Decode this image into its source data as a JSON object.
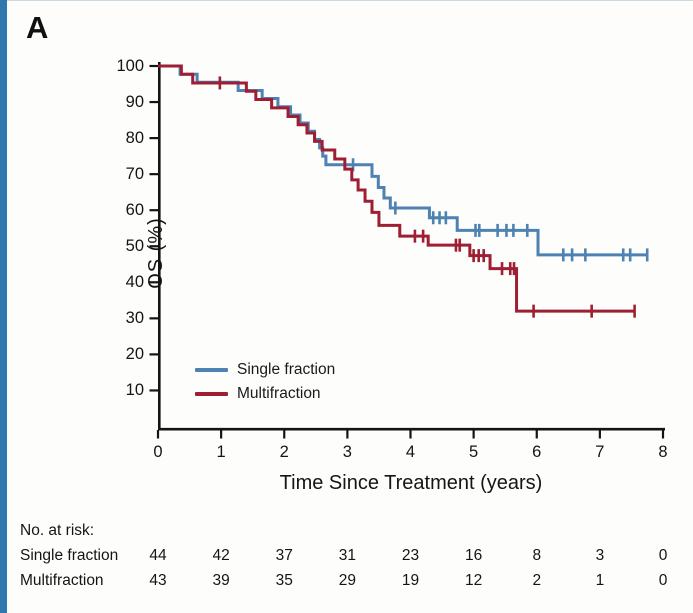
{
  "panel": {
    "label": "A"
  },
  "colors": {
    "accent_stripe": "#2e78ae",
    "axis": "#141414",
    "single_fraction": "#4d82b2",
    "multifraction": "#9e1f33"
  },
  "chart_data": {
    "type": "line",
    "subtype": "kaplan-meier-step",
    "title": "",
    "xlabel": "Time Since Treatment (years)",
    "ylabel": "OS (%)",
    "xlim": [
      0,
      8
    ],
    "ylim": [
      0,
      100
    ],
    "x_ticks": [
      0,
      1,
      2,
      3,
      4,
      5,
      6,
      7,
      8
    ],
    "y_ticks": [
      100,
      90,
      80,
      70,
      60,
      50,
      40,
      30,
      20,
      10
    ],
    "grid": false,
    "legend_position": "inside-lower-left",
    "series": [
      {
        "name": "Single fraction",
        "color": "#4d82b2",
        "start_pct": 100,
        "end_x": 7.75,
        "steps": [
          [
            0.35,
            97.7
          ],
          [
            0.62,
            95.5
          ],
          [
            1.27,
            93.2
          ],
          [
            1.65,
            91.0
          ],
          [
            1.9,
            88.7
          ],
          [
            2.1,
            86.4
          ],
          [
            2.25,
            84.2
          ],
          [
            2.38,
            81.9
          ],
          [
            2.48,
            79.6
          ],
          [
            2.56,
            77.3
          ],
          [
            2.61,
            75.0
          ],
          [
            2.66,
            72.6
          ],
          [
            3.39,
            69.4
          ],
          [
            3.49,
            66.3
          ],
          [
            3.58,
            63.4
          ],
          [
            3.68,
            60.6
          ],
          [
            4.3,
            57.9
          ],
          [
            4.74,
            54.4
          ],
          [
            6.02,
            47.6
          ]
        ],
        "censors": [
          [
            3.09,
            72.6
          ],
          [
            3.76,
            60.6
          ],
          [
            4.36,
            57.9
          ],
          [
            4.46,
            57.9
          ],
          [
            4.56,
            57.9
          ],
          [
            5.03,
            54.4
          ],
          [
            5.09,
            54.4
          ],
          [
            5.38,
            54.4
          ],
          [
            5.52,
            54.4
          ],
          [
            5.63,
            54.4
          ],
          [
            5.85,
            54.4
          ],
          [
            6.42,
            47.6
          ],
          [
            6.56,
            47.6
          ],
          [
            6.77,
            47.6
          ],
          [
            7.37,
            47.6
          ],
          [
            7.48,
            47.6
          ],
          [
            7.75,
            47.6
          ]
        ]
      },
      {
        "name": "Multifraction",
        "color": "#9e1f33",
        "start_pct": 100,
        "end_x": 7.55,
        "steps": [
          [
            0.37,
            97.7
          ],
          [
            0.55,
            95.3
          ],
          [
            1.4,
            93.0
          ],
          [
            1.55,
            90.7
          ],
          [
            1.8,
            88.4
          ],
          [
            2.06,
            86.0
          ],
          [
            2.22,
            83.7
          ],
          [
            2.36,
            81.4
          ],
          [
            2.48,
            79.1
          ],
          [
            2.6,
            76.7
          ],
          [
            2.8,
            74.2
          ],
          [
            2.96,
            71.4
          ],
          [
            3.07,
            68.4
          ],
          [
            3.17,
            65.6
          ],
          [
            3.28,
            62.5
          ],
          [
            3.39,
            59.4
          ],
          [
            3.5,
            55.8
          ],
          [
            3.83,
            52.8
          ],
          [
            4.28,
            50.3
          ],
          [
            4.94,
            47.4
          ],
          [
            5.26,
            43.8
          ],
          [
            5.68,
            32.0
          ]
        ],
        "censors": [
          [
            0.98,
            95.3
          ],
          [
            4.07,
            52.8
          ],
          [
            4.2,
            52.8
          ],
          [
            4.72,
            50.3
          ],
          [
            4.78,
            50.3
          ],
          [
            5.0,
            47.4
          ],
          [
            5.08,
            47.4
          ],
          [
            5.16,
            47.4
          ],
          [
            5.45,
            43.8
          ],
          [
            5.58,
            43.8
          ],
          [
            5.64,
            43.8
          ],
          [
            5.95,
            32.0
          ],
          [
            6.87,
            32.0
          ],
          [
            7.55,
            32.0
          ]
        ]
      }
    ],
    "at_risk": {
      "heading": "No. at risk:",
      "times": [
        0,
        1,
        2,
        3,
        4,
        5,
        6,
        7,
        8
      ],
      "rows": [
        {
          "name": "Single fraction",
          "counts": [
            44,
            42,
            37,
            31,
            23,
            16,
            8,
            3,
            0
          ]
        },
        {
          "name": "Multifraction",
          "counts": [
            43,
            39,
            35,
            29,
            19,
            12,
            2,
            1,
            0
          ]
        }
      ]
    }
  }
}
